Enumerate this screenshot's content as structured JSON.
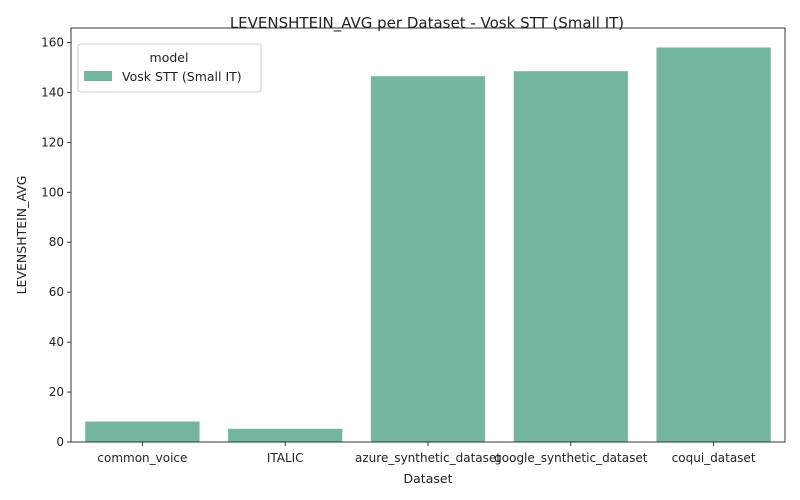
{
  "chart_data": {
    "type": "bar",
    "title": "LEVENSHTEIN_AVG per Dataset - Vosk STT (Small IT)",
    "xlabel": "Dataset",
    "ylabel": "LEVENSHTEIN_AVG",
    "categories": [
      "common_voice",
      "ITALIC",
      "azure_synthetic_dataset",
      "google_synthetic_dataset",
      "coqui_dataset"
    ],
    "series": [
      {
        "name": "Vosk STT (Small IT)",
        "values": [
          8.2,
          5.3,
          146.5,
          148.5,
          158.0
        ],
        "color": "#74b69f"
      }
    ],
    "ylim": [
      0,
      165.8
    ],
    "yticks": [
      0,
      20,
      40,
      60,
      80,
      100,
      120,
      140,
      160
    ],
    "grid": false,
    "legend": {
      "title": "model",
      "placement": "top-left"
    }
  }
}
